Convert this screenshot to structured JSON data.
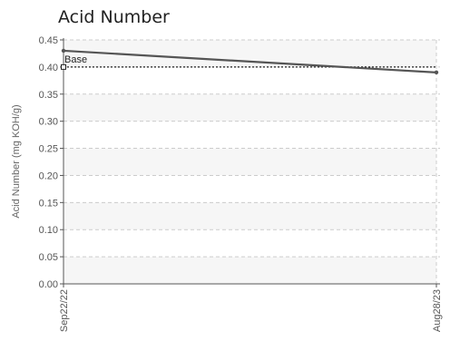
{
  "chart_data": {
    "type": "line",
    "title": "Acid Number",
    "xlabel": "",
    "ylabel": "Acid Number (mg KOH/g)",
    "ylim": [
      0,
      0.45
    ],
    "yticks": [
      "0.00",
      "0.05",
      "0.10",
      "0.15",
      "0.20",
      "0.25",
      "0.30",
      "0.35",
      "0.40",
      "0.45"
    ],
    "x": [
      "Sep22/22",
      "Aug28/23"
    ],
    "series": [
      {
        "name": "",
        "values": [
          0.43,
          0.39
        ],
        "color": "#555555"
      }
    ],
    "baseline": {
      "label": "Base",
      "value": 0.4
    },
    "grid": true,
    "legend": "none"
  }
}
